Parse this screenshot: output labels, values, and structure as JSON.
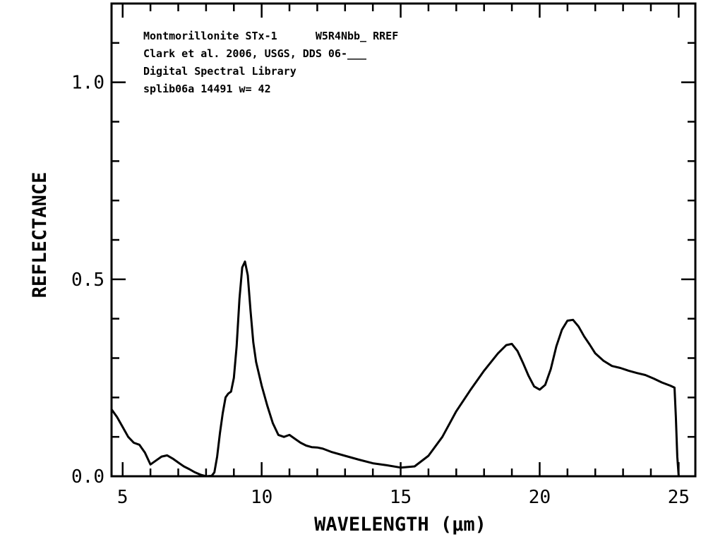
{
  "chart_data": {
    "type": "line",
    "xlabel": "WAVELENGTH (μm)",
    "ylabel": "REFLECTANCE",
    "xlim": [
      4.6,
      25.6
    ],
    "ylim": [
      0.0,
      1.2
    ],
    "xticks": [
      5,
      10,
      15,
      20,
      25
    ],
    "xtick_labels": [
      "5",
      "10",
      "15",
      "20",
      "25"
    ],
    "yticks": [
      0.0,
      0.5,
      1.0
    ],
    "ytick_labels": [
      "0.0",
      "0.5",
      "1.0"
    ],
    "annotations": [
      "Montmorillonite STx-1      W5R4Nbb_ RREF",
      "Clark et al. 2006, USGS, DDS 06-___",
      "Digital Spectral Library",
      "splib06a 14491 w= 42"
    ],
    "grid": false,
    "series": [
      {
        "color": "#000000",
        "x": [
          4.6,
          4.8,
          5.0,
          5.2,
          5.4,
          5.6,
          5.8,
          6.0,
          6.2,
          6.4,
          6.6,
          6.8,
          7.0,
          7.2,
          7.4,
          7.6,
          7.8,
          8.0,
          8.2,
          8.3,
          8.4,
          8.5,
          8.6,
          8.7,
          8.8,
          8.9,
          9.0,
          9.1,
          9.2,
          9.3,
          9.4,
          9.5,
          9.6,
          9.7,
          9.8,
          10.0,
          10.2,
          10.4,
          10.6,
          10.8,
          11.0,
          11.2,
          11.4,
          11.6,
          11.8,
          12.0,
          12.2,
          12.5,
          13.0,
          13.5,
          14.0,
          14.5,
          15.0,
          15.5,
          16.0,
          16.5,
          17.0,
          17.5,
          18.0,
          18.5,
          18.8,
          19.0,
          19.2,
          19.4,
          19.6,
          19.8,
          20.0,
          20.2,
          20.4,
          20.6,
          20.8,
          21.0,
          21.2,
          21.4,
          21.6,
          21.8,
          22.0,
          22.3,
          22.6,
          22.9,
          23.2,
          23.5,
          23.8,
          24.1,
          24.4,
          24.7,
          24.85,
          24.9,
          24.95,
          25.0
        ],
        "values": [
          0.17,
          0.15,
          0.125,
          0.1,
          0.085,
          0.08,
          0.06,
          0.03,
          0.04,
          0.05,
          0.053,
          0.045,
          0.035,
          0.025,
          0.018,
          0.01,
          0.004,
          0.0,
          0.001,
          0.01,
          0.05,
          0.11,
          0.16,
          0.2,
          0.21,
          0.215,
          0.25,
          0.33,
          0.45,
          0.53,
          0.545,
          0.51,
          0.42,
          0.34,
          0.29,
          0.23,
          0.18,
          0.135,
          0.105,
          0.1,
          0.105,
          0.095,
          0.085,
          0.078,
          0.074,
          0.073,
          0.07,
          0.062,
          0.052,
          0.042,
          0.033,
          0.028,
          0.022,
          0.025,
          0.052,
          0.1,
          0.165,
          0.218,
          0.268,
          0.312,
          0.333,
          0.336,
          0.318,
          0.288,
          0.255,
          0.228,
          0.22,
          0.232,
          0.272,
          0.33,
          0.372,
          0.395,
          0.397,
          0.38,
          0.355,
          0.334,
          0.312,
          0.293,
          0.28,
          0.275,
          0.268,
          0.262,
          0.257,
          0.248,
          0.238,
          0.23,
          0.225,
          0.15,
          0.05,
          0.0
        ]
      }
    ]
  }
}
